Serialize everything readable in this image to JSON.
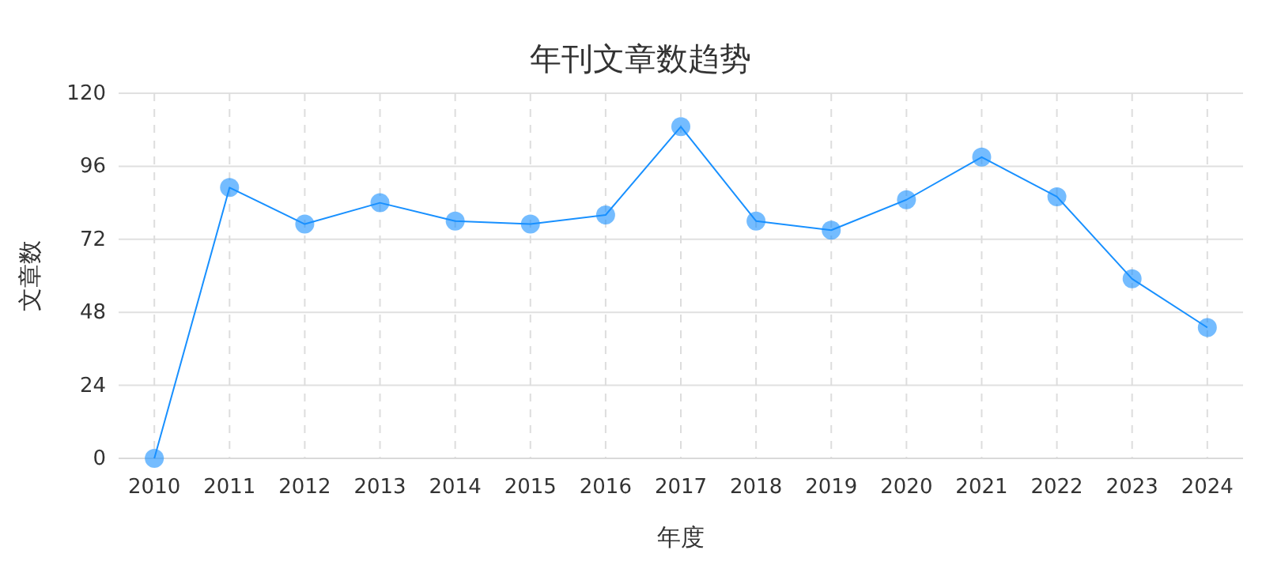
{
  "chart_data": {
    "type": "line",
    "title": "年刊文章数趋势",
    "xlabel": "年度",
    "ylabel": "文章数",
    "categories": [
      "2010",
      "2011",
      "2012",
      "2013",
      "2014",
      "2015",
      "2016",
      "2017",
      "2018",
      "2019",
      "2020",
      "2021",
      "2022",
      "2023",
      "2024"
    ],
    "series": [
      {
        "color": "#1890ff",
        "values": [
          0,
          89,
          77,
          84,
          78,
          77,
          80,
          109,
          78,
          75,
          85,
          99,
          86,
          59,
          43
        ]
      }
    ],
    "ylim": [
      0,
      120
    ],
    "yticks": [
      0,
      24,
      48,
      72,
      96,
      120
    ],
    "grid": true,
    "marker": "circle",
    "line_style": "solid"
  }
}
